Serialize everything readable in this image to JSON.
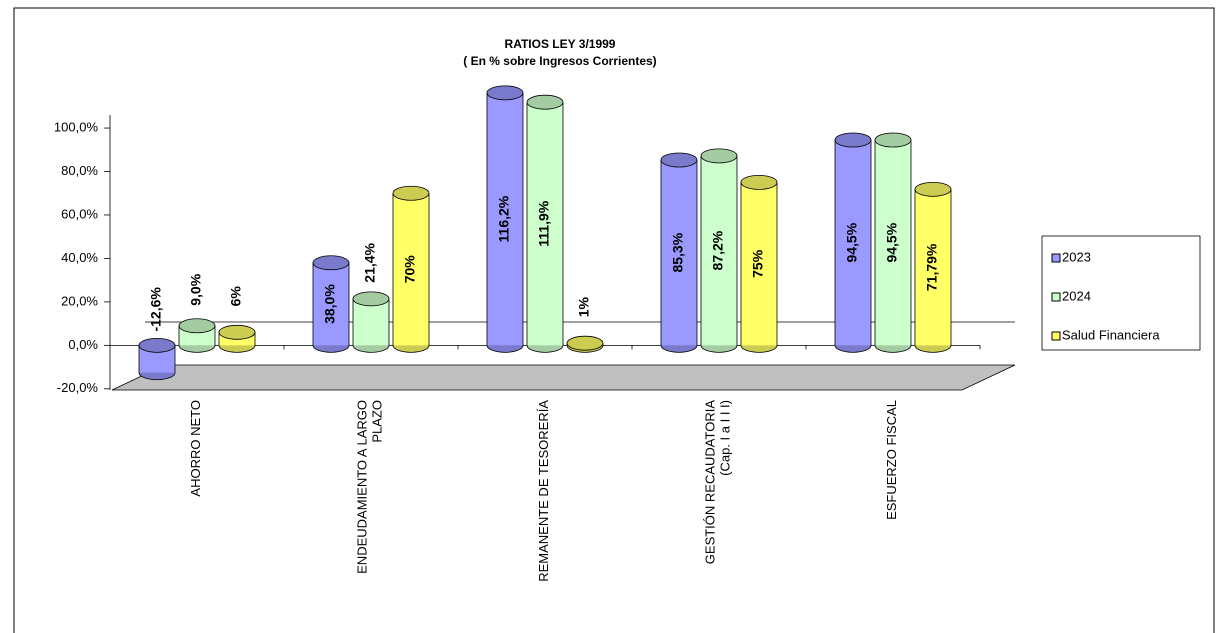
{
  "chart_data": {
    "type": "bar",
    "title": "RATIOS LEY 3/1999",
    "subtitle": "( En % sobre Ingresos Corrientes)",
    "categories": [
      "AHORRO NETO",
      "ENDEUDAMIENTO A LARGO\nPLAZO",
      "REMANENTE DE TESORERÍA",
      "GESTIÓN RECAUDATORIA\n(Cap. I a I I I)",
      "ESFUERZO FISCAL"
    ],
    "series": [
      {
        "name": "2023",
        "color": "#9999ff",
        "values": [
          -12.6,
          38.0,
          116.2,
          85.3,
          94.5
        ],
        "value_labels": [
          "-12,6%",
          "38,0%",
          "116,2%",
          "85,3%",
          "94,5%"
        ]
      },
      {
        "name": "2024",
        "color": "#ccffcc",
        "values": [
          9.0,
          21.4,
          111.9,
          87.2,
          94.5
        ],
        "value_labels": [
          "9,0%",
          "21,4%",
          "111,9%",
          "87,2%",
          "94,5%"
        ]
      },
      {
        "name": "Salud Financiera",
        "color": "#ffff66",
        "values": [
          6,
          70,
          1,
          75,
          71.79
        ],
        "value_labels": [
          "6%",
          "70%",
          "1%",
          "75%",
          "71,79%"
        ]
      }
    ],
    "ylim": [
      -20,
      120
    ],
    "yticks": [
      {
        "value": -20,
        "label": "-20,0%"
      },
      {
        "value": 0,
        "label": "0,0%"
      },
      {
        "value": 20,
        "label": "20,0%"
      },
      {
        "value": 40,
        "label": "40,0%"
      },
      {
        "value": 60,
        "label": "60,0%"
      },
      {
        "value": 80,
        "label": "80,0%"
      },
      {
        "value": 100,
        "label": "100,0%"
      }
    ],
    "legend": "right"
  }
}
